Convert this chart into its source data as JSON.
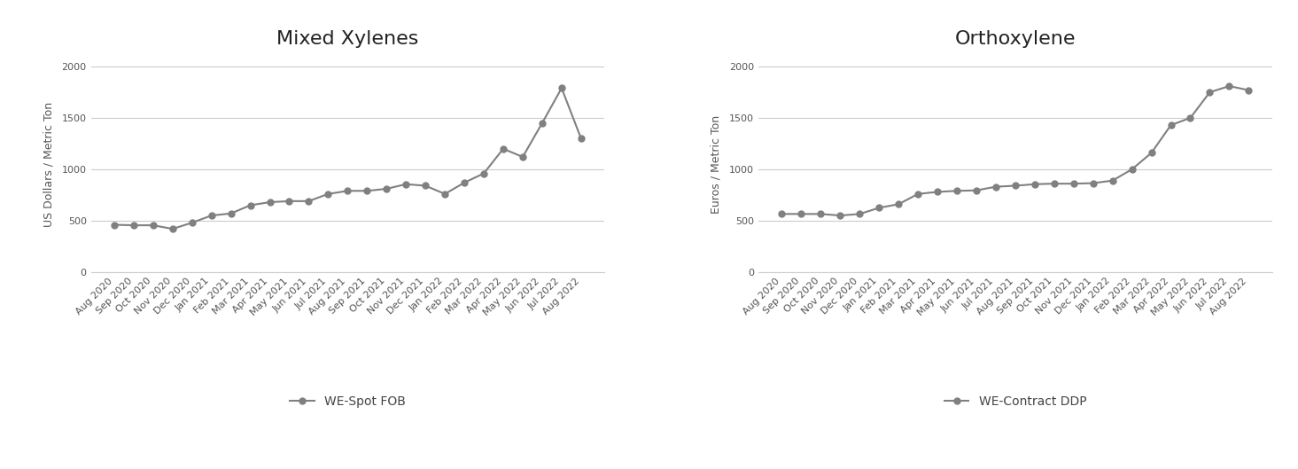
{
  "mixed_xylenes": {
    "title": "Mixed Xylenes",
    "ylabel": "US Dollars / Metric Ton",
    "legend": "WE-Spot FOB",
    "labels": [
      "Aug 2020",
      "Sep 2020",
      "Oct 2020",
      "Nov 2020",
      "Dec 2020",
      "Jan 2021",
      "Feb 2021",
      "Mar 2021",
      "Apr 2021",
      "May 2021",
      "Jun 2021",
      "Jul 2021",
      "Aug 2021",
      "Sep 2021",
      "Oct 2021",
      "Nov 2021",
      "Dec 2021",
      "Jan 2022",
      "Feb 2022",
      "Mar 2022",
      "Apr 2022",
      "May 2022",
      "Jun 2022",
      "Jul 2022",
      "Aug 2022"
    ],
    "values": [
      460,
      455,
      455,
      420,
      480,
      550,
      570,
      650,
      680,
      690,
      690,
      760,
      790,
      790,
      810,
      855,
      840,
      760,
      870,
      960,
      1200,
      1120,
      1450,
      1790,
      1300
    ]
  },
  "orthoxylene": {
    "title": "Orthoxylene",
    "ylabel": "Euros / Metric Ton",
    "legend": "WE-Contract DDP",
    "labels": [
      "Aug 2020",
      "Sep 2020",
      "Oct 2020",
      "Nov 2020",
      "Dec 2020",
      "Jan 2021",
      "Feb 2021",
      "Mar 2021",
      "Apr 2021",
      "May 2021",
      "Jun 2021",
      "Jul 2021",
      "Aug 2021",
      "Sep 2021",
      "Oct 2021",
      "Nov 2021",
      "Dec 2021",
      "Jan 2022",
      "Feb 2022",
      "Mar 2022",
      "Apr 2022",
      "May 2022",
      "Jun 2022",
      "Jul 2022",
      "Aug 2022"
    ],
    "values": [
      565,
      565,
      565,
      550,
      565,
      625,
      660,
      760,
      780,
      790,
      795,
      830,
      840,
      855,
      860,
      860,
      865,
      890,
      1000,
      1160,
      1430,
      1500,
      1750,
      1810,
      1770
    ]
  },
  "line_color": "#808080",
  "marker_color": "#808080",
  "marker_size": 5,
  "line_width": 1.5,
  "ylim": [
    0,
    2100
  ],
  "yticks": [
    0,
    500,
    1000,
    1500,
    2000
  ],
  "title_fontsize": 16,
  "ylabel_fontsize": 9,
  "tick_fontsize": 8,
  "legend_fontsize": 10,
  "bg_color": "#ffffff",
  "grid_color": "#cccccc"
}
